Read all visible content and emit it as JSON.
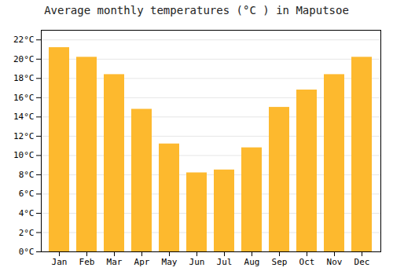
{
  "chart_data": {
    "type": "bar",
    "title": "Average monthly temperatures (°C ) in Maputsoe",
    "categories": [
      "Jan",
      "Feb",
      "Mar",
      "Apr",
      "May",
      "Jun",
      "Jul",
      "Aug",
      "Sep",
      "Oct",
      "Nov",
      "Dec"
    ],
    "values": [
      21.2,
      20.2,
      18.4,
      14.8,
      11.2,
      8.2,
      8.5,
      10.8,
      15.0,
      16.8,
      18.4,
      20.2
    ],
    "color": "#FDB92E",
    "ylim": [
      0,
      23
    ],
    "yticks": [
      {
        "value": 0,
        "label": "0°C"
      },
      {
        "value": 2,
        "label": "2°C"
      },
      {
        "value": 4,
        "label": "4°C"
      },
      {
        "value": 6,
        "label": "6°C"
      },
      {
        "value": 8,
        "label": "8°C"
      },
      {
        "value": 10,
        "label": "10°C"
      },
      {
        "value": 12,
        "label": "12°C"
      },
      {
        "value": 14,
        "label": "14°C"
      },
      {
        "value": 16,
        "label": "16°C"
      },
      {
        "value": 18,
        "label": "18°C"
      },
      {
        "value": 20,
        "label": "20°C"
      },
      {
        "value": 22,
        "label": "22°C"
      }
    ],
    "grid": true
  }
}
